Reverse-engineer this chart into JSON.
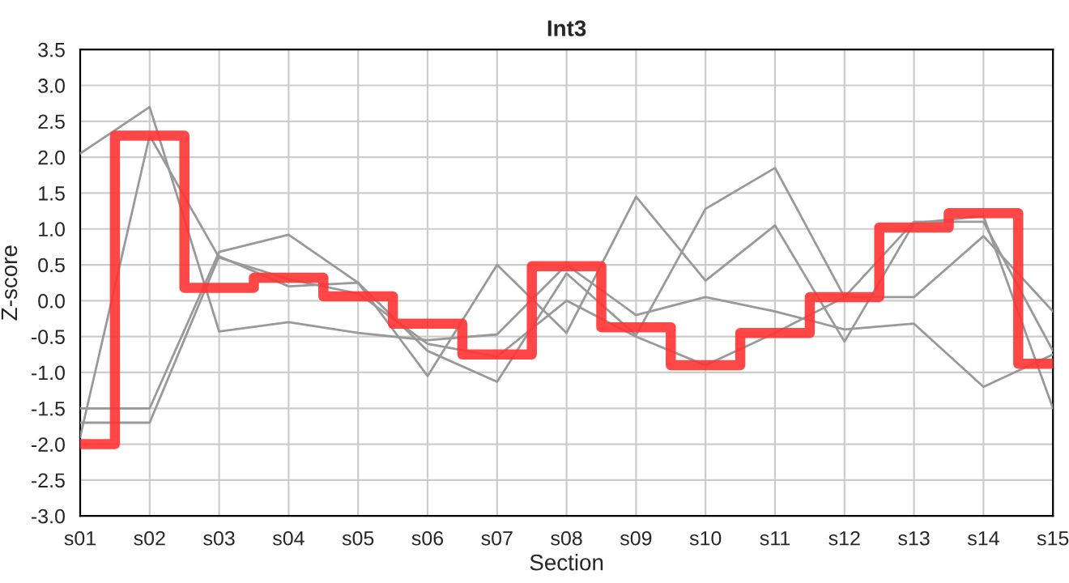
{
  "chart_data": {
    "type": "line",
    "title": "Int3",
    "xlabel": "Section",
    "ylabel": "Z-score",
    "categories": [
      "s01",
      "s02",
      "s03",
      "s04",
      "s05",
      "s06",
      "s07",
      "s08",
      "s09",
      "s10",
      "s11",
      "s12",
      "s13",
      "s14",
      "s15"
    ],
    "series": [
      {
        "color": "#999999",
        "values": [
          2.05,
          2.7,
          -0.43,
          -0.3,
          -0.45,
          -0.55,
          -0.47,
          0.5,
          -0.2,
          0.05,
          -0.15,
          -0.4,
          -0.32,
          -1.2,
          -0.75
        ]
      },
      {
        "color": "#999999",
        "values": [
          -1.7,
          -1.7,
          0.62,
          0.2,
          0.25,
          -1.05,
          0.5,
          -0.45,
          1.45,
          0.28,
          1.05,
          -0.57,
          1.08,
          1.18,
          -1.5
        ]
      },
      {
        "color": "#999999",
        "values": [
          -1.5,
          -1.5,
          0.68,
          0.92,
          0.25,
          -0.7,
          -1.13,
          0.38,
          -0.48,
          1.28,
          1.85,
          0.05,
          1.1,
          1.1,
          -0.7
        ]
      },
      {
        "color": "#999999",
        "values": [
          -1.9,
          2.3,
          0.6,
          0.3,
          0.1,
          -0.6,
          -0.78,
          0.0,
          -0.5,
          -0.9,
          -0.45,
          0.05,
          0.05,
          0.9,
          -0.15
        ]
      },
      {
        "type": "step",
        "color": "#ff3333",
        "values": [
          -2.0,
          2.3,
          0.18,
          0.32,
          0.06,
          -0.32,
          -0.75,
          0.48,
          -0.37,
          -0.9,
          -0.45,
          0.05,
          1.02,
          1.22,
          -0.88
        ]
      }
    ],
    "ylim": [
      -3.0,
      3.5
    ],
    "yticks": [
      {
        "value": -3.0,
        "label": "-3.0"
      },
      {
        "value": -2.5,
        "label": "-2.5"
      },
      {
        "value": -2.0,
        "label": "-2.0"
      },
      {
        "value": -1.5,
        "label": "-1.5"
      },
      {
        "value": -1.0,
        "label": "-1.0"
      },
      {
        "value": -0.5,
        "label": "-0.5"
      },
      {
        "value": 0.0,
        "label": "0.0"
      },
      {
        "value": 0.5,
        "label": "0.5"
      },
      {
        "value": 1.0,
        "label": "1.0"
      },
      {
        "value": 1.5,
        "label": "1.5"
      },
      {
        "value": 2.0,
        "label": "2.0"
      },
      {
        "value": 2.5,
        "label": "2.5"
      },
      {
        "value": 3.0,
        "label": "3.0"
      },
      {
        "value": 3.5,
        "label": "3.5"
      }
    ],
    "grid": true,
    "legend": false
  }
}
